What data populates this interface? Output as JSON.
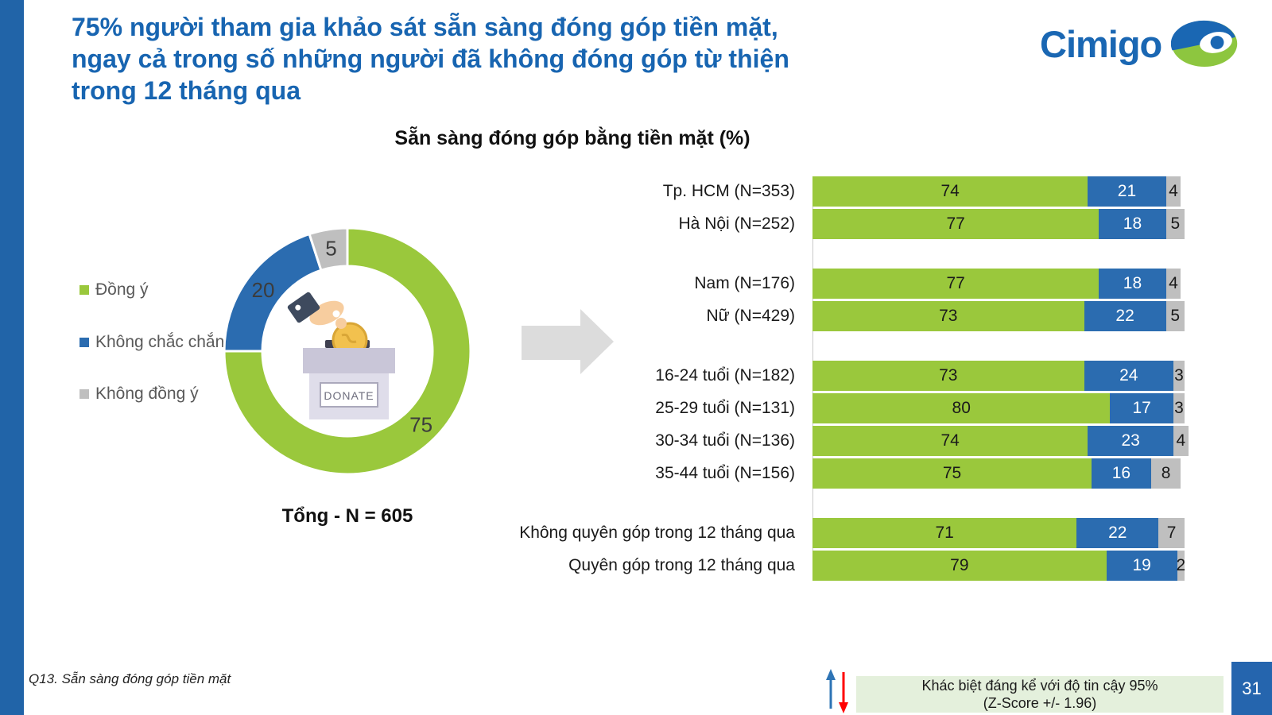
{
  "slide_title": {
    "lines": [
      "75% người tham gia khảo sát sẵn sàng đóng góp tiền mặt,",
      "ngay cả trong số những người đã không đóng góp từ thiện",
      "trong 12 tháng qua"
    ]
  },
  "logo": {
    "text": "Cimigo"
  },
  "chart_title": "Sẵn sàng đóng góp bằng tiền mặt (%)",
  "legend": [
    {
      "label": "Đồng ý",
      "color": "#9AC83C"
    },
    {
      "label": "Không chắc chắn",
      "color": "#2B6CB0"
    },
    {
      "label": "Không đồng ý",
      "color": "#BFBFBF"
    }
  ],
  "donut": {
    "caption": "Tổng - N = 605",
    "center_icon": "donation-box-hand-coin",
    "donate_label": "DONATE"
  },
  "footer": {
    "question": "Q13. Sẵn sàng đóng góp tiền mặt"
  },
  "significance_note": {
    "lines": [
      "Khác biệt đáng kể với độ tin cậy 95%",
      "(Z-Score +/- 1.96)"
    ]
  },
  "page_number": "31",
  "colors": {
    "title_blue": "#1865B1",
    "strip_blue": "#2164A8",
    "page_box_blue": "#2565AE",
    "bar_green": "#9AC83C",
    "bar_blue": "#2B6CB0",
    "bar_gray": "#BFBFBF",
    "note_bg": "#E4F0DC",
    "up_arrow": "#2E74B5",
    "down_arrow": "#FF0000"
  },
  "chart_data": [
    {
      "type": "pie",
      "subtype": "donut",
      "title": "Tổng - N = 605",
      "labels": [
        "Đồng ý",
        "Không chắc chắn",
        "Không đồng ý"
      ],
      "values": [
        75,
        20,
        5
      ],
      "colors": [
        "#9AC83C",
        "#2B6CB0",
        "#BFBFBF"
      ],
      "start_angle_deg": 0,
      "direction": "clockwise",
      "legend_position": "left"
    },
    {
      "type": "bar",
      "orientation": "horizontal",
      "stacked": true,
      "title": "Sẵn sàng đóng góp bằng tiền mặt (%)",
      "xlim": [
        0,
        100
      ],
      "categories": [
        "Tp. HCM (N=353)",
        "Hà Nội (N=252)",
        "Nam (N=176)",
        "Nữ (N=429)",
        "16-24 tuổi (N=182)",
        "25-29 tuổi (N=131)",
        "30-34 tuổi (N=136)",
        "35-44 tuổi (N=156)",
        "Không quyên góp trong 12 tháng qua",
        "Quyên góp trong 12 tháng qua"
      ],
      "groups": [
        [
          0,
          1
        ],
        [
          2,
          3
        ],
        [
          4,
          5,
          6,
          7
        ],
        [
          8,
          9
        ]
      ],
      "series": [
        {
          "name": "Đồng ý",
          "color": "#9AC83C",
          "value_color": "#1A1A1A",
          "values": [
            74,
            77,
            77,
            73,
            73,
            80,
            74,
            75,
            71,
            79
          ]
        },
        {
          "name": "Không chắc chắn",
          "color": "#2B6CB0",
          "value_color": "#FFFFFF",
          "values": [
            21,
            18,
            18,
            22,
            24,
            17,
            23,
            16,
            22,
            19
          ]
        },
        {
          "name": "Không đồng ý",
          "color": "#BFBFBF",
          "value_color": "#1A1A1A",
          "values": [
            4,
            5,
            4,
            5,
            3,
            3,
            4,
            8,
            7,
            2
          ]
        }
      ]
    }
  ]
}
